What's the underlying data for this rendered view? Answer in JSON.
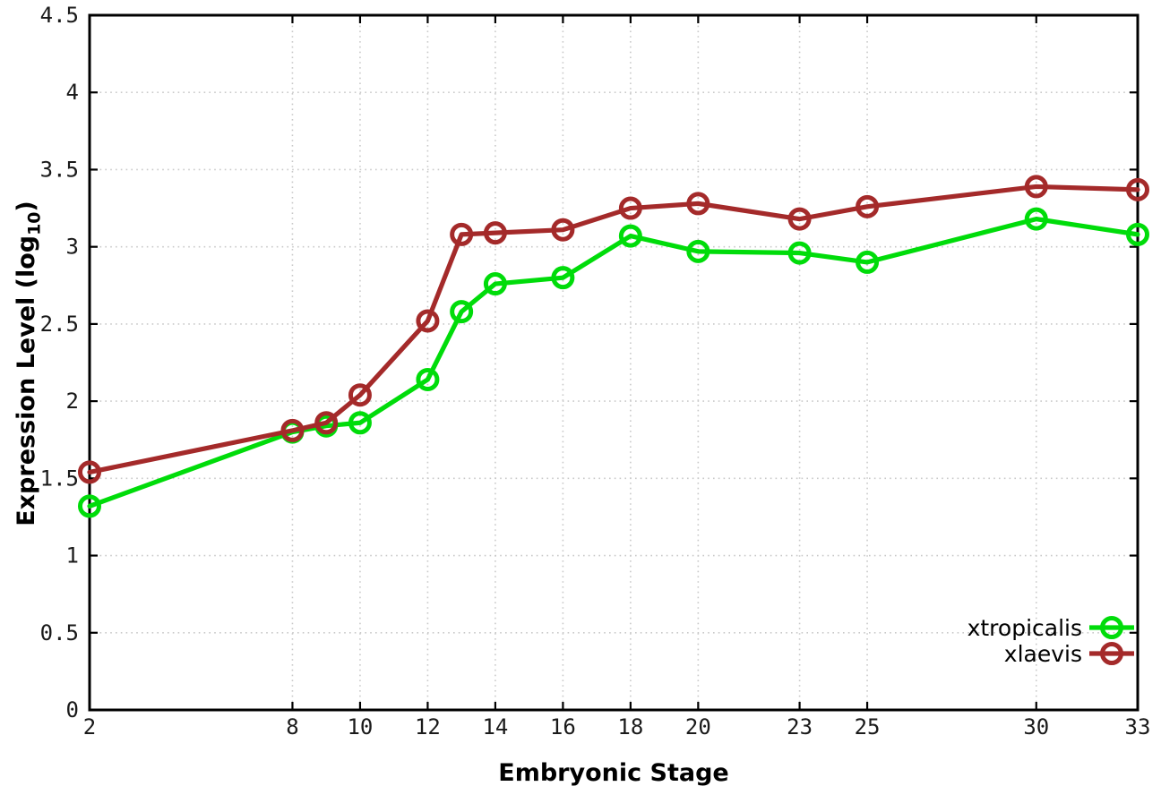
{
  "chart_data": {
    "type": "line",
    "title": "",
    "xlabel": "Embryonic Stage",
    "ylabel": "Expression Level (log10)",
    "ylabel_parts": {
      "prefix": "Expression Level (log",
      "sub": "10",
      "suffix": ")"
    },
    "x": [
      2,
      8,
      9,
      10,
      12,
      13,
      14,
      16,
      18,
      20,
      23,
      25,
      30,
      33
    ],
    "series": [
      {
        "name": "xtropicalis",
        "color": "#00dc0a",
        "values": [
          1.32,
          1.8,
          1.84,
          1.86,
          2.14,
          2.58,
          2.76,
          2.8,
          3.07,
          2.97,
          2.96,
          2.9,
          3.18,
          3.08
        ]
      },
      {
        "name": "xlaevis",
        "color": "#a42a2a",
        "values": [
          1.54,
          1.81,
          1.86,
          2.04,
          2.52,
          3.08,
          3.09,
          3.11,
          3.25,
          3.28,
          3.18,
          3.26,
          3.39,
          3.37
        ]
      }
    ],
    "xlim": [
      2,
      33
    ],
    "ylim": [
      0,
      4.5
    ],
    "xtick_values": [
      2,
      8,
      10,
      12,
      14,
      16,
      18,
      20,
      23,
      25,
      30,
      33
    ],
    "xtick_labels": [
      "2",
      "8",
      "10",
      "12",
      "14",
      "16",
      "18",
      "20",
      "23",
      "25",
      "30",
      "33"
    ],
    "ytick_values": [
      0,
      0.5,
      1,
      1.5,
      2,
      2.5,
      3,
      3.5,
      4,
      4.5
    ],
    "ytick_labels": [
      "0",
      "0.5",
      "1",
      "1.5",
      "2",
      "2.5",
      "3",
      "3.5",
      "4",
      "4.5"
    ],
    "grid": true,
    "legend_position": "inside-bottom-right"
  },
  "style": {
    "background": "#ffffff",
    "border_color": "#000000",
    "grid_color": "#c9c9c9",
    "tick_text_color": "#1a1a1a",
    "legend_text_color": "#000000"
  }
}
